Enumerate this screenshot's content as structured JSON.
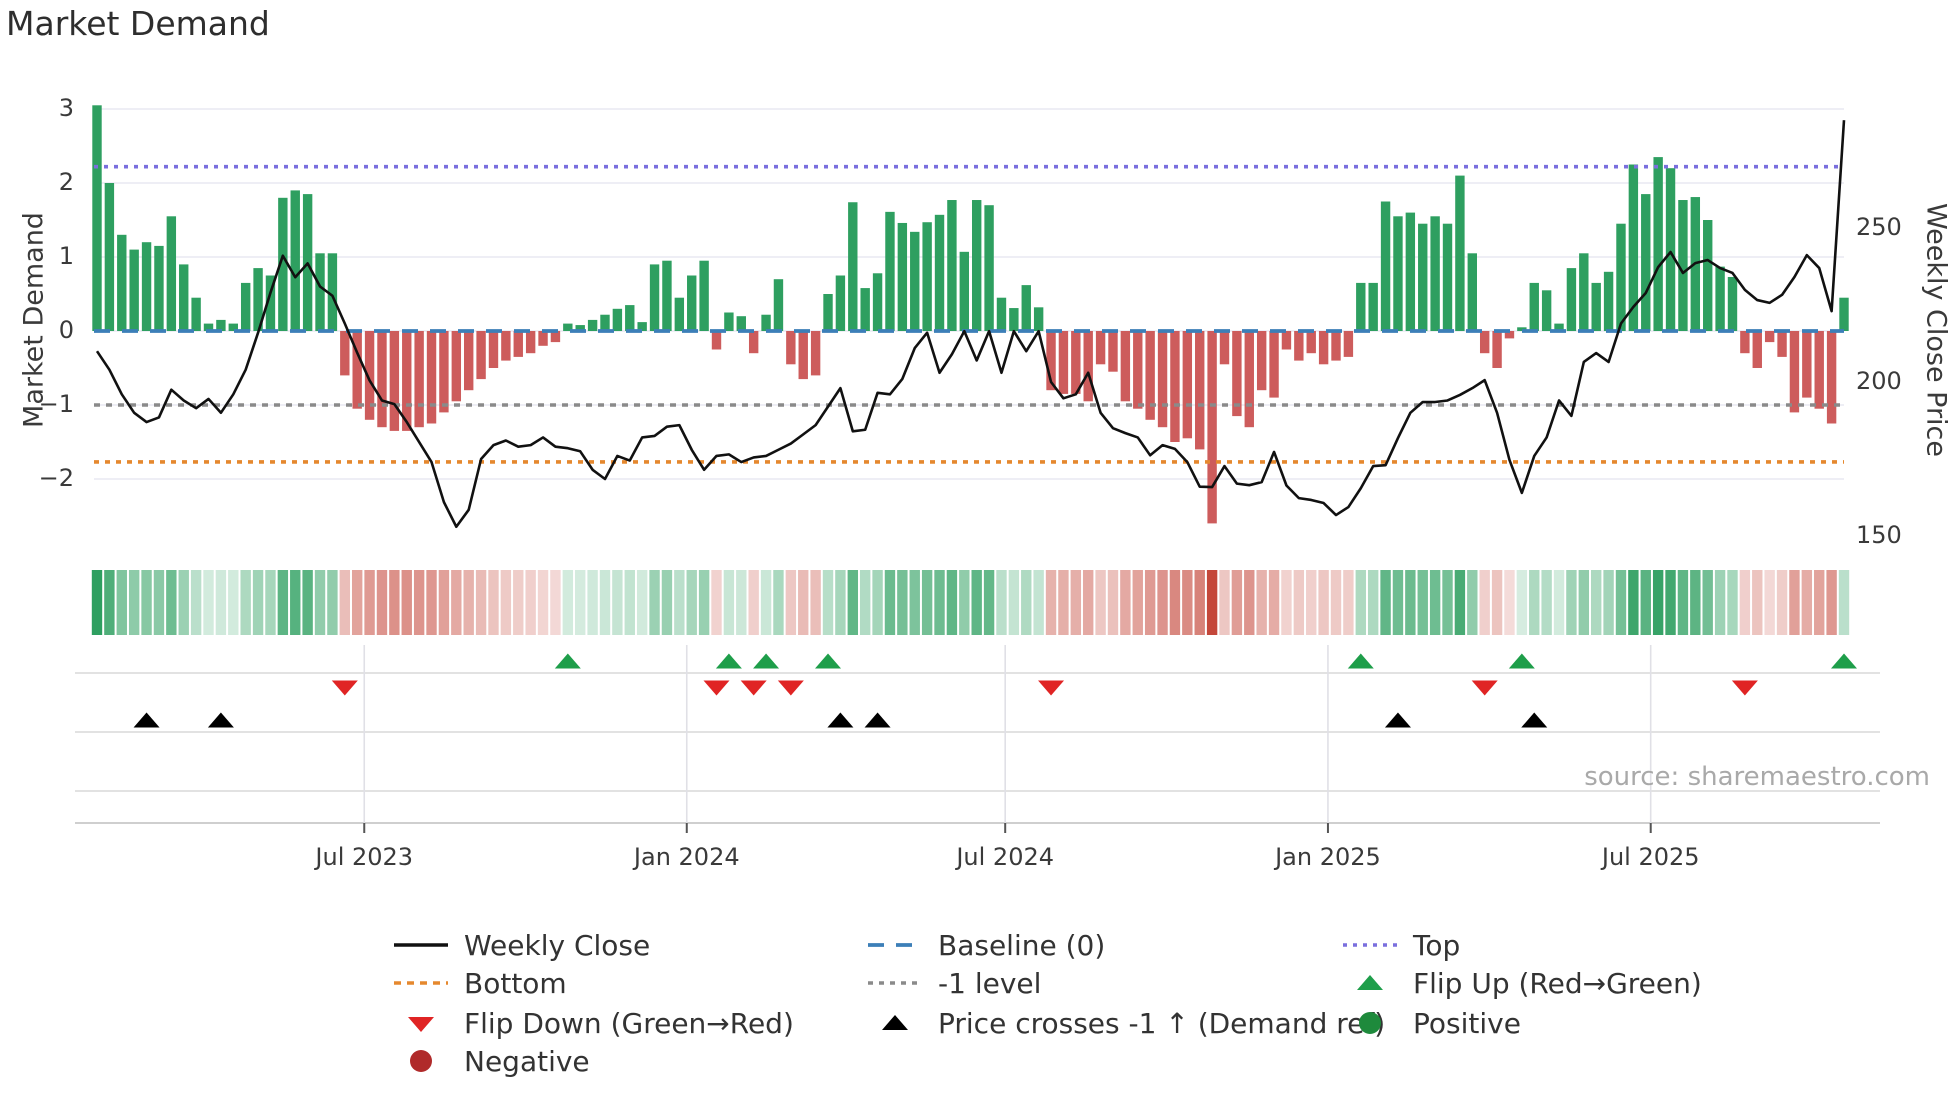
{
  "title": "Market Demand",
  "axes": {
    "y_left_label": "Market Demand",
    "y_right_label": "Weekly Close Price",
    "y_left_ticks": [
      3,
      2,
      1,
      0,
      -1,
      -2
    ],
    "y_right_ticks": [
      250,
      200,
      150
    ],
    "x_tick_labels": [
      "Jul 2023",
      "Jan 2024",
      "Jul 2024",
      "Jan 2025",
      "Jul 2025"
    ],
    "x_tick_weeks": [
      21.57,
      47.6,
      73.3,
      99.35,
      125.4
    ]
  },
  "source": "source: sharemaestro.com",
  "colors": {
    "bar_positive": "#2e9f60",
    "bar_negative": "#cd5c5c",
    "line": "#111111",
    "baseline": "#3c7fb8",
    "top_line": "#7a6fde",
    "bottom_line": "#e5882e",
    "minus1_line": "#8a8a8a",
    "grid": "#e9e9f2",
    "flip_up": "#1e9e4a",
    "flip_down": "#e02424",
    "price_cross": "#000000",
    "positive_dot": "#1e8a3c",
    "negative_dot": "#b02a2a",
    "heat_green": "#2e9f60",
    "heat_red": "#c0392b"
  },
  "chart_data": {
    "type": "bar",
    "note": "weekly data, week 0 = early Feb 2023, week 141 = mid Oct 2025",
    "ref_lines": {
      "baseline": 0,
      "top": 2.22,
      "bottom": -1.77,
      "minus1": -1
    },
    "ylim_left": [
      -2.8,
      3.2
    ],
    "ylim_right_labels": [
      150,
      200,
      250
    ],
    "series": [
      {
        "name": "Market Demand",
        "type": "bar",
        "values": [
          3.05,
          2.0,
          1.3,
          1.1,
          1.2,
          1.15,
          1.55,
          0.9,
          0.45,
          0.1,
          0.15,
          0.1,
          0.65,
          0.85,
          0.75,
          1.8,
          1.9,
          1.85,
          1.05,
          1.05,
          -0.6,
          -1.05,
          -1.2,
          -1.3,
          -1.35,
          -1.35,
          -1.3,
          -1.25,
          -1.1,
          -0.95,
          -0.8,
          -0.65,
          -0.5,
          -0.4,
          -0.35,
          -0.3,
          -0.2,
          -0.15,
          0.1,
          0.08,
          0.15,
          0.22,
          0.3,
          0.35,
          0.12,
          0.9,
          0.95,
          0.45,
          0.75,
          0.95,
          -0.25,
          0.25,
          0.2,
          -0.3,
          0.22,
          0.7,
          -0.45,
          -0.65,
          -0.6,
          0.5,
          0.75,
          1.74,
          0.58,
          0.78,
          1.61,
          1.46,
          1.34,
          1.47,
          1.57,
          1.77,
          1.07,
          1.77,
          1.7,
          0.45,
          0.31,
          0.62,
          0.32,
          -0.8,
          -0.85,
          -0.85,
          -0.95,
          -0.45,
          -0.55,
          -0.95,
          -1.05,
          -1.2,
          -1.3,
          -1.5,
          -1.45,
          -1.6,
          -2.6,
          -0.45,
          -1.15,
          -1.3,
          -0.8,
          -0.9,
          -0.25,
          -0.4,
          -0.3,
          -0.45,
          -0.4,
          -0.35,
          0.65,
          0.65,
          1.75,
          1.55,
          1.6,
          1.45,
          1.55,
          1.45,
          2.1,
          1.05,
          -0.3,
          -0.5,
          -0.1,
          0.05,
          0.65,
          0.55,
          0.1,
          0.85,
          1.05,
          0.65,
          0.8,
          1.45,
          2.25,
          1.85,
          2.35,
          2.2,
          1.77,
          1.81,
          1.5,
          0.87,
          0.73,
          -0.3,
          -0.5,
          -0.15,
          -0.35,
          -1.1,
          -0.9,
          -1.05,
          -1.25,
          0.45
        ]
      },
      {
        "name": "Weekly Close",
        "type": "line",
        "values": [
          210,
          204,
          196,
          190,
          187,
          188.5,
          197.5,
          194,
          191.5,
          194.5,
          190,
          196,
          204,
          216,
          229,
          241,
          234,
          238.5,
          231,
          228,
          219,
          209.5,
          200.5,
          194,
          192.8,
          187,
          180.5,
          174,
          161,
          153,
          158.5,
          175,
          179.5,
          181,
          179,
          179.5,
          182,
          179,
          178.5,
          177.5,
          171.5,
          168.5,
          176,
          174.5,
          182,
          182.5,
          185.5,
          186,
          178,
          171.5,
          176,
          176.5,
          174,
          175.5,
          176,
          178,
          180,
          183,
          186,
          192,
          198,
          184,
          184.5,
          196.5,
          196,
          201,
          211,
          216,
          203,
          209,
          216.5,
          207,
          216.5,
          203,
          216.5,
          210,
          216.5,
          200,
          194.7,
          196,
          203,
          190,
          185,
          183.4,
          182,
          176.2,
          179.5,
          178.3,
          174,
          166,
          165.9,
          172.7,
          167,
          166.5,
          167.5,
          177.3,
          166.4,
          162.3,
          161.7,
          160.7,
          156.8,
          159.4,
          165.5,
          172.7,
          173,
          181.8,
          190,
          193.5,
          193.5,
          194,
          195.8,
          198,
          200.6,
          190,
          174.7,
          164,
          176,
          182,
          194,
          189,
          206.5,
          209.4,
          206.5,
          219,
          224.4,
          228.9,
          237.3,
          242.2,
          235.4,
          238.6,
          239.6,
          237,
          235.4,
          229.9,
          226.6,
          225.7,
          228.3,
          234.1,
          241.2,
          237,
          223,
          285
        ]
      }
    ],
    "heatmap": "mirrors bar sign and magnitude",
    "markers": {
      "flip_up_weeks": [
        38,
        51,
        54,
        59,
        102,
        115,
        141
      ],
      "flip_down_weeks": [
        20,
        50,
        53,
        56,
        77,
        112,
        133
      ],
      "price_cross_weeks": [
        4,
        10,
        60,
        63,
        105,
        116
      ]
    }
  },
  "legend": {
    "columns": [
      {
        "items": [
          {
            "swatch": "line-black",
            "label": "Weekly Close"
          },
          {
            "swatch": "dash-orange",
            "label": "Bottom"
          },
          {
            "swatch": "tri-down-red",
            "label": "Flip Down (Green→Red)"
          },
          {
            "swatch": "dot-darkred",
            "label": "Negative"
          }
        ]
      },
      {
        "items": [
          {
            "swatch": "dash-blue",
            "label": "Baseline (0)"
          },
          {
            "swatch": "dot-line-gray",
            "label": "-1 level"
          },
          {
            "swatch": "tri-up-black",
            "label": "Price crosses -1 ↑ (Demand ref)"
          }
        ]
      },
      {
        "items": [
          {
            "swatch": "dot-line-purple",
            "label": "Top"
          },
          {
            "swatch": "tri-up-green",
            "label": "Flip Up (Red→Green)"
          },
          {
            "swatch": "dot-green",
            "label": "Positive"
          }
        ]
      }
    ]
  }
}
